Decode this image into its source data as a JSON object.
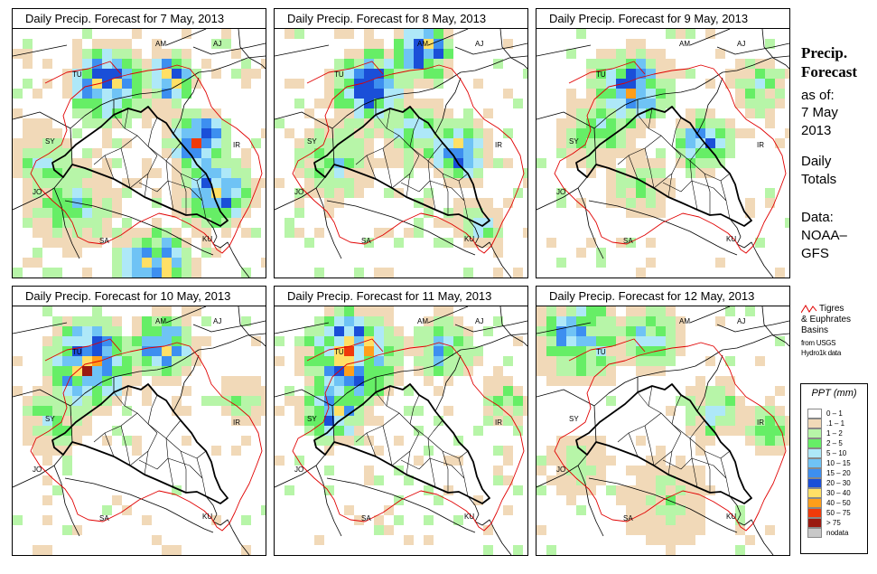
{
  "panels": [
    {
      "title": "Daily Precip. Forecast for  7 May, 2013",
      "intensity": 1.0,
      "center": "north-east"
    },
    {
      "title": "Daily Precip. Forecast for  8 May, 2013",
      "intensity": 0.85,
      "center": "north"
    },
    {
      "title": "Daily Precip. Forecast for  9 May, 2013",
      "intensity": 0.6,
      "center": "north"
    },
    {
      "title": "Daily Precip. Forecast for  10 May, 2013",
      "intensity": 0.6,
      "center": "north-west"
    },
    {
      "title": "Daily Precip. Forecast for  11 May, 2013",
      "intensity": 0.75,
      "center": "north-west"
    },
    {
      "title": "Daily Precip. Forecast for  12 May, 2013",
      "intensity": 0.45,
      "center": "north"
    }
  ],
  "country_labels": [
    "AM",
    "AJ",
    "TU",
    "SY",
    "IR",
    "JO",
    "SA",
    "KU"
  ],
  "sidebar": {
    "title_line1": "Precip.",
    "title_line2": "Forecast",
    "asof": "as of:",
    "date_line1": "7 May",
    "date_line2": "2013",
    "totals_line1": "Daily",
    "totals_line2": "Totals",
    "data_line1": "Data:",
    "data_line2": "NOAA–",
    "data_line3": "GFS"
  },
  "basin_legend": {
    "label_line1": "Tigres",
    "label_line2": "& Euphrates",
    "label_line3": "Basins",
    "source_line1": "from USGS",
    "source_line2": "Hydro1k data",
    "line_color": "#e00000"
  },
  "ppt_legend": {
    "title": "PPT (mm)",
    "items": [
      {
        "label": "0 – 1",
        "color": "#ffffff"
      },
      {
        "label": ".1 – 1",
        "color": "#f1d9b8"
      },
      {
        "label": "1 – 2",
        "color": "#b7f5a8"
      },
      {
        "label": "2 – 5",
        "color": "#66ee66"
      },
      {
        "label": "5 – 10",
        "color": "#aee8f8"
      },
      {
        "label": "10 – 15",
        "color": "#6fc3f5"
      },
      {
        "label": "15 – 20",
        "color": "#3d8ff0"
      },
      {
        "label": "20 – 30",
        "color": "#1a4fd8"
      },
      {
        "label": "30 – 40",
        "color": "#ffe066"
      },
      {
        "label": "40 – 50",
        "color": "#ff9e1a"
      },
      {
        "label": "50 – 75",
        "color": "#f03a0a"
      },
      {
        "label": "> 75",
        "color": "#9a1a10"
      },
      {
        "label": "nodata",
        "color": "#c8c8c8"
      }
    ]
  }
}
